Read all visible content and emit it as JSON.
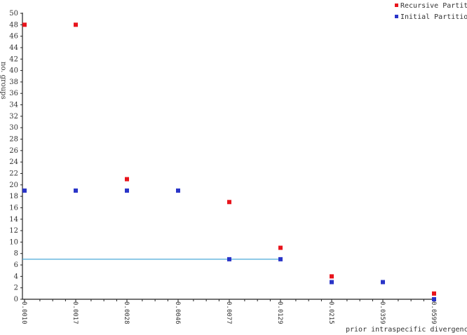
{
  "chart_data": {
    "type": "scatter",
    "title": "",
    "xlabel": "prior intraspecific divergence (P)",
    "ylabel": "no. groups",
    "categories": [
      "0.0010",
      "0.0017",
      "0.0028",
      "0.0046",
      "0.0077",
      "0.0129",
      "0.0215",
      "0.0359",
      "0.0599"
    ],
    "ylim": [
      0,
      50
    ],
    "ytick_step": 2,
    "grid": false,
    "legend_position": "top-right",
    "series": [
      {
        "name": "Recursive Partition",
        "color": "#e8141c",
        "points": [
          [
            "0.0010",
            48
          ],
          [
            "0.0017",
            48
          ],
          [
            "0.0028",
            21
          ],
          [
            "0.0077",
            17
          ],
          [
            "0.0129",
            9
          ],
          [
            "0.0215",
            4
          ],
          [
            "0.0599",
            1
          ]
        ]
      },
      {
        "name": "Initial Partition",
        "color": "#2a35c8",
        "points": [
          [
            "0.0010",
            19
          ],
          [
            "0.0017",
            19
          ],
          [
            "0.0028",
            19
          ],
          [
            "0.0046",
            19
          ],
          [
            "0.0077",
            7
          ],
          [
            "0.0129",
            7
          ],
          [
            "0.0215",
            3
          ],
          [
            "0.0359",
            3
          ],
          [
            "0.0599",
            0
          ]
        ]
      }
    ],
    "reference_line": {
      "y": 7,
      "x_from": "0.0010",
      "x_to": "0.0129",
      "color": "#4aa8d8"
    }
  }
}
